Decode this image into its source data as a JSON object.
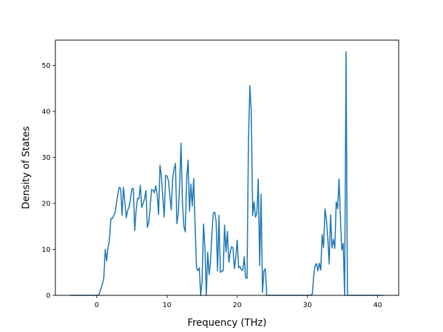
{
  "chart_data": {
    "type": "line",
    "title": "",
    "xlabel": "Frequency (THz)",
    "ylabel": "Density of States",
    "xlim": [
      -5.9,
      43.0
    ],
    "ylim": [
      0,
      55.5
    ],
    "xticks": [
      0,
      10,
      20,
      30,
      40
    ],
    "yticks": [
      0,
      10,
      20,
      30,
      40,
      50
    ],
    "grid": false,
    "legend": "none",
    "series": [
      {
        "color": "#1f77b4",
        "points": [
          [
            -3.8,
            0
          ],
          [
            -2.0,
            0
          ],
          [
            0.0,
            0
          ],
          [
            0.3,
            0.1
          ],
          [
            0.6,
            1.5
          ],
          [
            0.8,
            2.5
          ],
          [
            1.0,
            3.8
          ],
          [
            1.2,
            10.0
          ],
          [
            1.4,
            7.5
          ],
          [
            1.6,
            10.5
          ],
          [
            1.8,
            12.0
          ],
          [
            2.0,
            16.7
          ],
          [
            2.2,
            16.7
          ],
          [
            2.4,
            17.3
          ],
          [
            2.6,
            18.0
          ],
          [
            2.8,
            20.0
          ],
          [
            3.0,
            22.0
          ],
          [
            3.2,
            23.5
          ],
          [
            3.4,
            23.2
          ],
          [
            3.6,
            17.4
          ],
          [
            3.8,
            23.5
          ],
          [
            4.0,
            20.2
          ],
          [
            4.2,
            16.9
          ],
          [
            4.4,
            18.5
          ],
          [
            4.6,
            19.2
          ],
          [
            4.8,
            21.1
          ],
          [
            5.0,
            23.2
          ],
          [
            5.2,
            23.2
          ],
          [
            5.4,
            14.1
          ],
          [
            5.6,
            18.5
          ],
          [
            5.8,
            21.1
          ],
          [
            6.0,
            21.0
          ],
          [
            6.2,
            23.9
          ],
          [
            6.4,
            19.1
          ],
          [
            6.6,
            20.0
          ],
          [
            6.8,
            21.0
          ],
          [
            7.0,
            22.8
          ],
          [
            7.2,
            14.8
          ],
          [
            7.4,
            15.9
          ],
          [
            7.6,
            19.2
          ],
          [
            7.8,
            23.0
          ],
          [
            8.0,
            22.9
          ],
          [
            8.2,
            22.3
          ],
          [
            8.4,
            23.8
          ],
          [
            8.6,
            22.0
          ],
          [
            8.8,
            17.6
          ],
          [
            9.0,
            28.3
          ],
          [
            9.2,
            25.9
          ],
          [
            9.4,
            21.3
          ],
          [
            9.6,
            17.0
          ],
          [
            9.8,
            26.1
          ],
          [
            10.0,
            25.9
          ],
          [
            10.2,
            25.0
          ],
          [
            10.4,
            21.7
          ],
          [
            10.6,
            18.6
          ],
          [
            10.8,
            25.4
          ],
          [
            11.0,
            27.4
          ],
          [
            11.2,
            28.7
          ],
          [
            11.4,
            15.6
          ],
          [
            11.6,
            17.8
          ],
          [
            11.8,
            23.9
          ],
          [
            12.0,
            33.1
          ],
          [
            12.2,
            20.1
          ],
          [
            12.4,
            15.0
          ],
          [
            12.6,
            13.8
          ],
          [
            12.8,
            25.4
          ],
          [
            13.0,
            29.4
          ],
          [
            13.2,
            18.3
          ],
          [
            13.4,
            24.2
          ],
          [
            13.6,
            19.4
          ],
          [
            13.8,
            25.4
          ],
          [
            14.0,
            15.1
          ],
          [
            14.2,
            6.0
          ],
          [
            14.4,
            5.4
          ],
          [
            14.6,
            6.0
          ],
          [
            14.8,
            0.0
          ],
          [
            15.0,
            3.1
          ],
          [
            15.2,
            15.5
          ],
          [
            15.4,
            10.4
          ],
          [
            15.6,
            0.0
          ],
          [
            15.8,
            9.4
          ],
          [
            16.0,
            4.5
          ],
          [
            16.2,
            7.4
          ],
          [
            16.4,
            13.5
          ],
          [
            16.6,
            17.9
          ],
          [
            16.8,
            18.1
          ],
          [
            17.0,
            16.1
          ],
          [
            17.2,
            5.3
          ],
          [
            17.4,
            17.4
          ],
          [
            17.6,
            5.0
          ],
          [
            17.8,
            5.3
          ],
          [
            18.0,
            5.3
          ],
          [
            18.2,
            15.3
          ],
          [
            18.4,
            9.4
          ],
          [
            18.6,
            13.9
          ],
          [
            18.8,
            7.2
          ],
          [
            19.0,
            9.3
          ],
          [
            19.2,
            10.6
          ],
          [
            19.4,
            10.3
          ],
          [
            19.6,
            5.8
          ],
          [
            19.8,
            8.3
          ],
          [
            20.0,
            12.0
          ],
          [
            20.2,
            6.0
          ],
          [
            20.4,
            6.3
          ],
          [
            20.6,
            5.5
          ],
          [
            20.8,
            5.5
          ],
          [
            21.0,
            8.4
          ],
          [
            21.2,
            3.8
          ],
          [
            21.4,
            3.7
          ],
          [
            21.6,
            33.5
          ],
          [
            21.8,
            45.6
          ],
          [
            22.0,
            40.0
          ],
          [
            22.2,
            17.3
          ],
          [
            22.4,
            20.3
          ],
          [
            22.6,
            17.0
          ],
          [
            22.8,
            17.8
          ],
          [
            23.0,
            25.3
          ],
          [
            23.2,
            6.5
          ],
          [
            23.4,
            22.0
          ],
          [
            23.6,
            0.6
          ],
          [
            23.8,
            5.3
          ],
          [
            24.0,
            5.8
          ],
          [
            24.2,
            0.0
          ],
          [
            26.0,
            0.0
          ],
          [
            28.0,
            0.0
          ],
          [
            30.5,
            0.0
          ],
          [
            30.7,
            0.3
          ],
          [
            30.9,
            4.4
          ],
          [
            31.1,
            6.5
          ],
          [
            31.3,
            6.9
          ],
          [
            31.5,
            5.3
          ],
          [
            31.7,
            7.0
          ],
          [
            31.9,
            5.5
          ],
          [
            32.1,
            13.2
          ],
          [
            32.3,
            10.4
          ],
          [
            32.5,
            18.8
          ],
          [
            32.7,
            16.5
          ],
          [
            32.9,
            12.5
          ],
          [
            33.1,
            6.8
          ],
          [
            33.3,
            17.5
          ],
          [
            33.5,
            10.3
          ],
          [
            33.7,
            12.2
          ],
          [
            33.9,
            10.2
          ],
          [
            34.1,
            20.3
          ],
          [
            34.3,
            18.8
          ],
          [
            34.5,
            25.3
          ],
          [
            34.7,
            16.5
          ],
          [
            34.9,
            9.9
          ],
          [
            35.1,
            11.3
          ],
          [
            35.3,
            0.0
          ],
          [
            35.5,
            53.0
          ],
          [
            35.7,
            0.0
          ],
          [
            36.5,
            0.0
          ],
          [
            38.5,
            0.0
          ],
          [
            40.8,
            0.0
          ]
        ]
      }
    ]
  }
}
